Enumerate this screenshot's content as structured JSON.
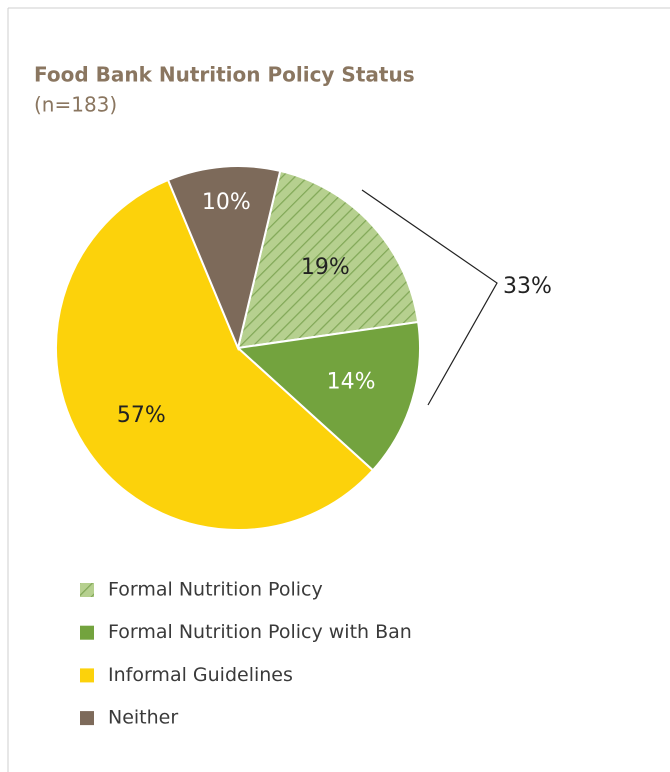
{
  "chart_data": {
    "type": "pie",
    "title": "Food Bank Nutrition Policy Status",
    "subtitle": "(n=183)",
    "categories": [
      "Formal Nutrition Policy",
      "Formal Nutrition Policy with Ban",
      "Informal Guidelines",
      "Neither"
    ],
    "values": [
      19,
      14,
      57,
      10
    ],
    "value_labels": [
      "19%",
      "14%",
      "57%",
      "10%"
    ],
    "colors": [
      "#b6d08f",
      "#73a33e",
      "#fcd20b",
      "#7d6a5a"
    ],
    "hatched": [
      true,
      false,
      false,
      false
    ],
    "annotation": "33%"
  }
}
